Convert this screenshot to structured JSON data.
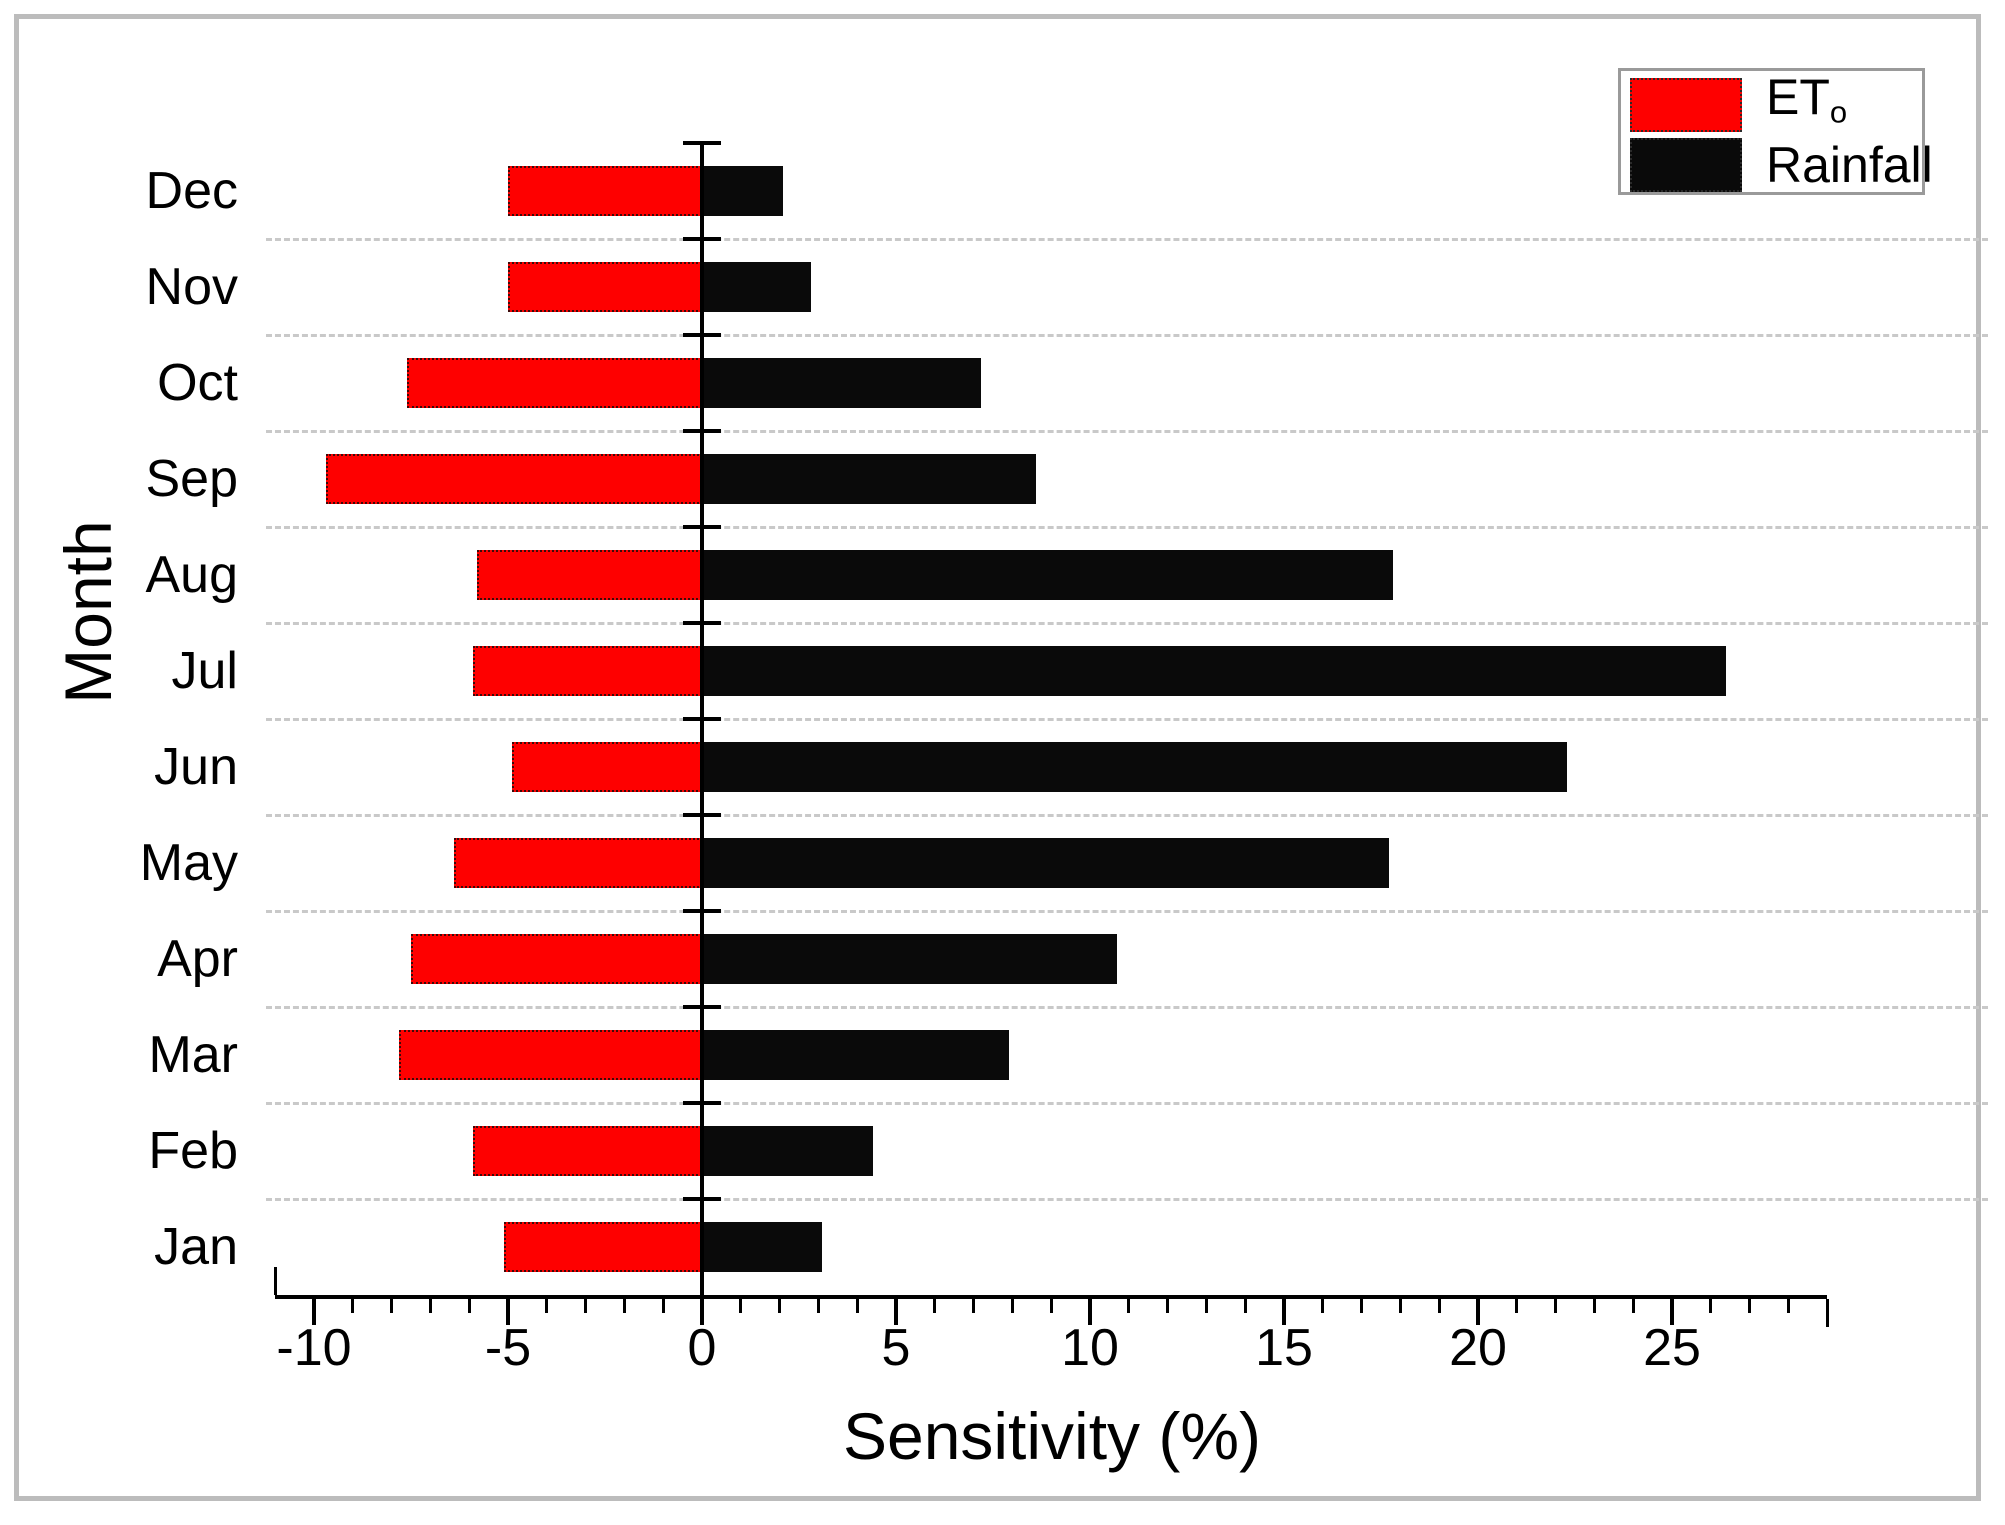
{
  "chart_data": {
    "type": "bar",
    "orientation": "horizontal",
    "title": "",
    "xlabel": "Sensitivity (%)",
    "ylabel": "Month",
    "xlim": [
      -11,
      29
    ],
    "x_ticks": [
      -10,
      -5,
      0,
      5,
      10,
      15,
      20,
      25
    ],
    "minor_tick_unit": 1,
    "grid": "horizontal dashed gridlines between category rows",
    "legend_position": "top-right",
    "categories": [
      "Jan",
      "Feb",
      "Mar",
      "Apr",
      "May",
      "Jun",
      "Jul",
      "Aug",
      "Sep",
      "Oct",
      "Nov",
      "Dec"
    ],
    "categories_order": "bottom-to-top",
    "series": [
      {
        "name": "ETo",
        "label": "ET",
        "label_subscript": "o",
        "color": "#fe0000",
        "values": [
          -5.1,
          -5.9,
          -7.8,
          -7.5,
          -6.4,
          -4.9,
          -5.9,
          -5.8,
          -9.7,
          -7.6,
          -5.0,
          -5.0
        ]
      },
      {
        "name": "Rainfall",
        "label": "Rainfall",
        "color": "#0a0a0a",
        "values": [
          3.1,
          4.4,
          7.9,
          10.7,
          17.7,
          22.3,
          26.4,
          17.8,
          8.6,
          7.2,
          2.8,
          2.1
        ]
      }
    ]
  },
  "frame": {
    "border_color": "#bcbcbc"
  },
  "gridline_color": "#c9c9c9"
}
